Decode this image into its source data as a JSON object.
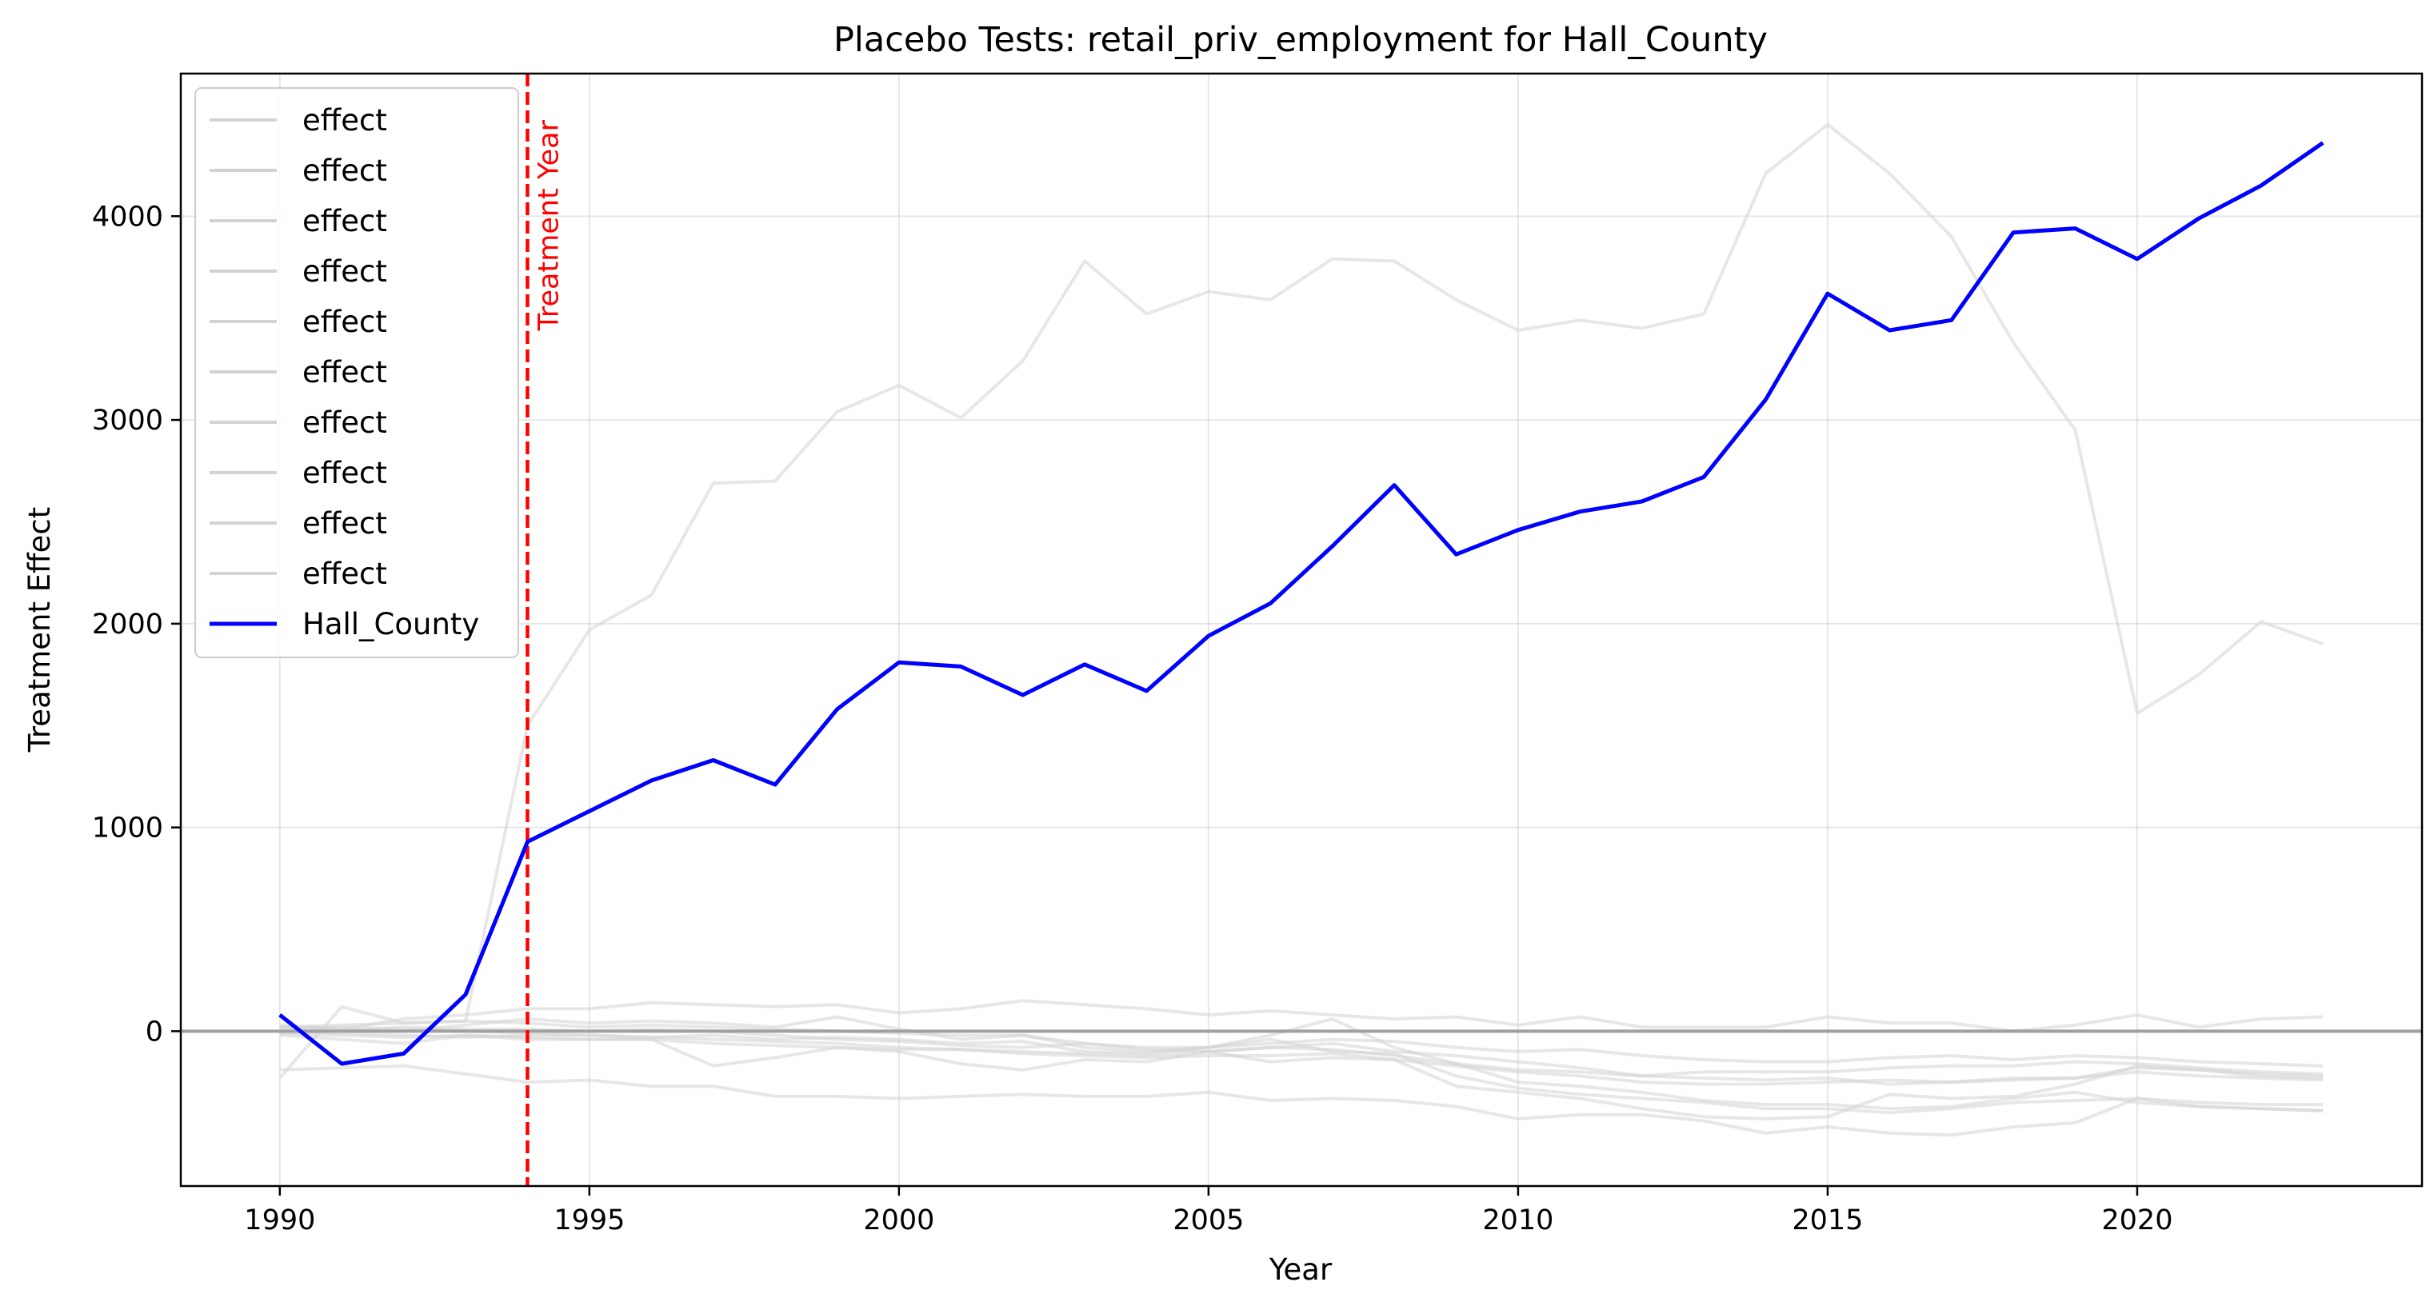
{
  "chart_data": {
    "type": "line",
    "title": "Placebo Tests: retail_priv_employment for Hall_County",
    "xlabel": "Year",
    "ylabel": "Treatment Effect",
    "xlim": [
      1988.4,
      2024.6
    ],
    "ylim": [
      -760,
      4700
    ],
    "xticks": [
      1990,
      1995,
      2000,
      2005,
      2010,
      2015,
      2020
    ],
    "yticks": [
      0,
      1000,
      2000,
      3000,
      4000
    ],
    "grid": true,
    "legend_position": "top-left",
    "treatment_year": 1994,
    "treatment_annotation": "Treatment Year",
    "x": [
      1990,
      1991,
      1992,
      1993,
      1994,
      1995,
      1996,
      1997,
      1998,
      1999,
      2000,
      2001,
      2002,
      2003,
      2004,
      2005,
      2006,
      2007,
      2008,
      2009,
      2010,
      2011,
      2012,
      2013,
      2014,
      2015,
      2016,
      2017,
      2018,
      2019,
      2020,
      2021,
      2022,
      2023
    ],
    "colors": {
      "placebo": "#d3d3d3",
      "treated": "#0000ff",
      "treatment_line": "#ff0000",
      "zero_line": "#a0a0a0"
    },
    "series": [
      {
        "name": "effect",
        "role": "placebo",
        "values": [
          -230,
          120,
          40,
          50,
          1500,
          1970,
          2140,
          2690,
          2700,
          3040,
          3170,
          3010,
          3290,
          3780,
          3520,
          3630,
          3590,
          3790,
          3780,
          3590,
          3440,
          3490,
          3450,
          3520,
          4210,
          4450,
          4210,
          3900,
          3380,
          2950,
          1560,
          1750,
          2010,
          1900
        ]
      },
      {
        "name": "effect",
        "role": "placebo",
        "values": [
          -190,
          -180,
          -170,
          -210,
          -250,
          -240,
          -270,
          -270,
          -320,
          -320,
          -330,
          -320,
          -310,
          -320,
          -320,
          -300,
          -340,
          -330,
          -340,
          -370,
          -430,
          -410,
          -410,
          -440,
          -500,
          -470,
          -500,
          -510,
          -470,
          -450,
          -330,
          -350,
          -360,
          -360
        ]
      },
      {
        "name": "effect",
        "role": "placebo",
        "values": [
          30,
          10,
          60,
          80,
          110,
          110,
          140,
          130,
          120,
          130,
          90,
          110,
          150,
          130,
          110,
          80,
          100,
          80,
          60,
          70,
          30,
          70,
          20,
          20,
          20,
          70,
          40,
          40,
          0,
          30,
          80,
          20,
          60,
          70
        ]
      },
      {
        "name": "effect",
        "role": "placebo",
        "values": [
          -20,
          -40,
          -60,
          -20,
          -40,
          -40,
          -40,
          -170,
          -130,
          -80,
          -100,
          -160,
          -190,
          -140,
          -150,
          -100,
          -150,
          -130,
          -140,
          -270,
          -300,
          -330,
          -380,
          -420,
          -430,
          -420,
          -310,
          -330,
          -320,
          -260,
          -170,
          -190,
          -210,
          -220
        ]
      },
      {
        "name": "effect",
        "role": "placebo",
        "values": [
          20,
          30,
          40,
          50,
          40,
          20,
          30,
          20,
          10,
          0,
          -10,
          -20,
          -20,
          -60,
          -90,
          -100,
          -80,
          -60,
          -100,
          -120,
          -150,
          -180,
          -220,
          -200,
          -200,
          -200,
          -180,
          -170,
          -170,
          -150,
          -160,
          -180,
          -200,
          -210
        ]
      },
      {
        "name": "effect",
        "role": "placebo",
        "values": [
          0,
          -10,
          -20,
          -30,
          -20,
          -20,
          -30,
          -20,
          -40,
          -30,
          -40,
          -60,
          -50,
          -100,
          -110,
          -80,
          -20,
          60,
          -80,
          -160,
          -250,
          -270,
          -300,
          -340,
          -360,
          -360,
          -380,
          -370,
          -330,
          -300,
          -350,
          -370,
          -380,
          -390
        ]
      },
      {
        "name": "effect",
        "role": "placebo",
        "values": [
          10,
          20,
          10,
          0,
          -10,
          -20,
          -30,
          -40,
          -50,
          -60,
          -80,
          -90,
          -100,
          -110,
          -120,
          -100,
          -80,
          -90,
          -120,
          -160,
          -190,
          -200,
          -220,
          -230,
          -240,
          -230,
          -260,
          -250,
          -230,
          -230,
          -200,
          -220,
          -230,
          -240
        ]
      },
      {
        "name": "effect",
        "role": "placebo",
        "values": [
          -10,
          0,
          20,
          10,
          10,
          0,
          10,
          0,
          -20,
          -40,
          -50,
          -70,
          -80,
          -60,
          -80,
          -80,
          -60,
          -40,
          -50,
          -80,
          -100,
          -90,
          -120,
          -140,
          -150,
          -150,
          -130,
          -120,
          -140,
          -120,
          -130,
          -150,
          -160,
          -170
        ]
      },
      {
        "name": "effect",
        "role": "placebo",
        "values": [
          -10,
          -20,
          -30,
          -20,
          -30,
          -40,
          -40,
          -60,
          -70,
          -80,
          -90,
          -90,
          -110,
          -120,
          -130,
          -120,
          -120,
          -110,
          -140,
          -170,
          -200,
          -220,
          -250,
          -260,
          -260,
          -250,
          -240,
          -250,
          -240,
          -230,
          -180,
          -190,
          -220,
          -230
        ]
      },
      {
        "name": "effect",
        "role": "placebo",
        "values": [
          20,
          10,
          0,
          30,
          60,
          40,
          50,
          40,
          20,
          70,
          10,
          -40,
          -20,
          -80,
          -100,
          -80,
          -40,
          -100,
          -110,
          -220,
          -280,
          -310,
          -330,
          -350,
          -380,
          -380,
          -400,
          -380,
          -350,
          -340,
          -330,
          -370,
          -380,
          -390
        ]
      },
      {
        "name": "Hall_County",
        "role": "treated",
        "values": [
          80,
          -160,
          -110,
          180,
          930,
          1080,
          1230,
          1330,
          1210,
          1580,
          1810,
          1790,
          1650,
          1800,
          1670,
          1940,
          2100,
          2380,
          2680,
          2340,
          2460,
          2550,
          2600,
          2720,
          3100,
          3620,
          3440,
          3490,
          3920,
          3940,
          3790,
          3990,
          4150,
          4360
        ]
      }
    ]
  }
}
